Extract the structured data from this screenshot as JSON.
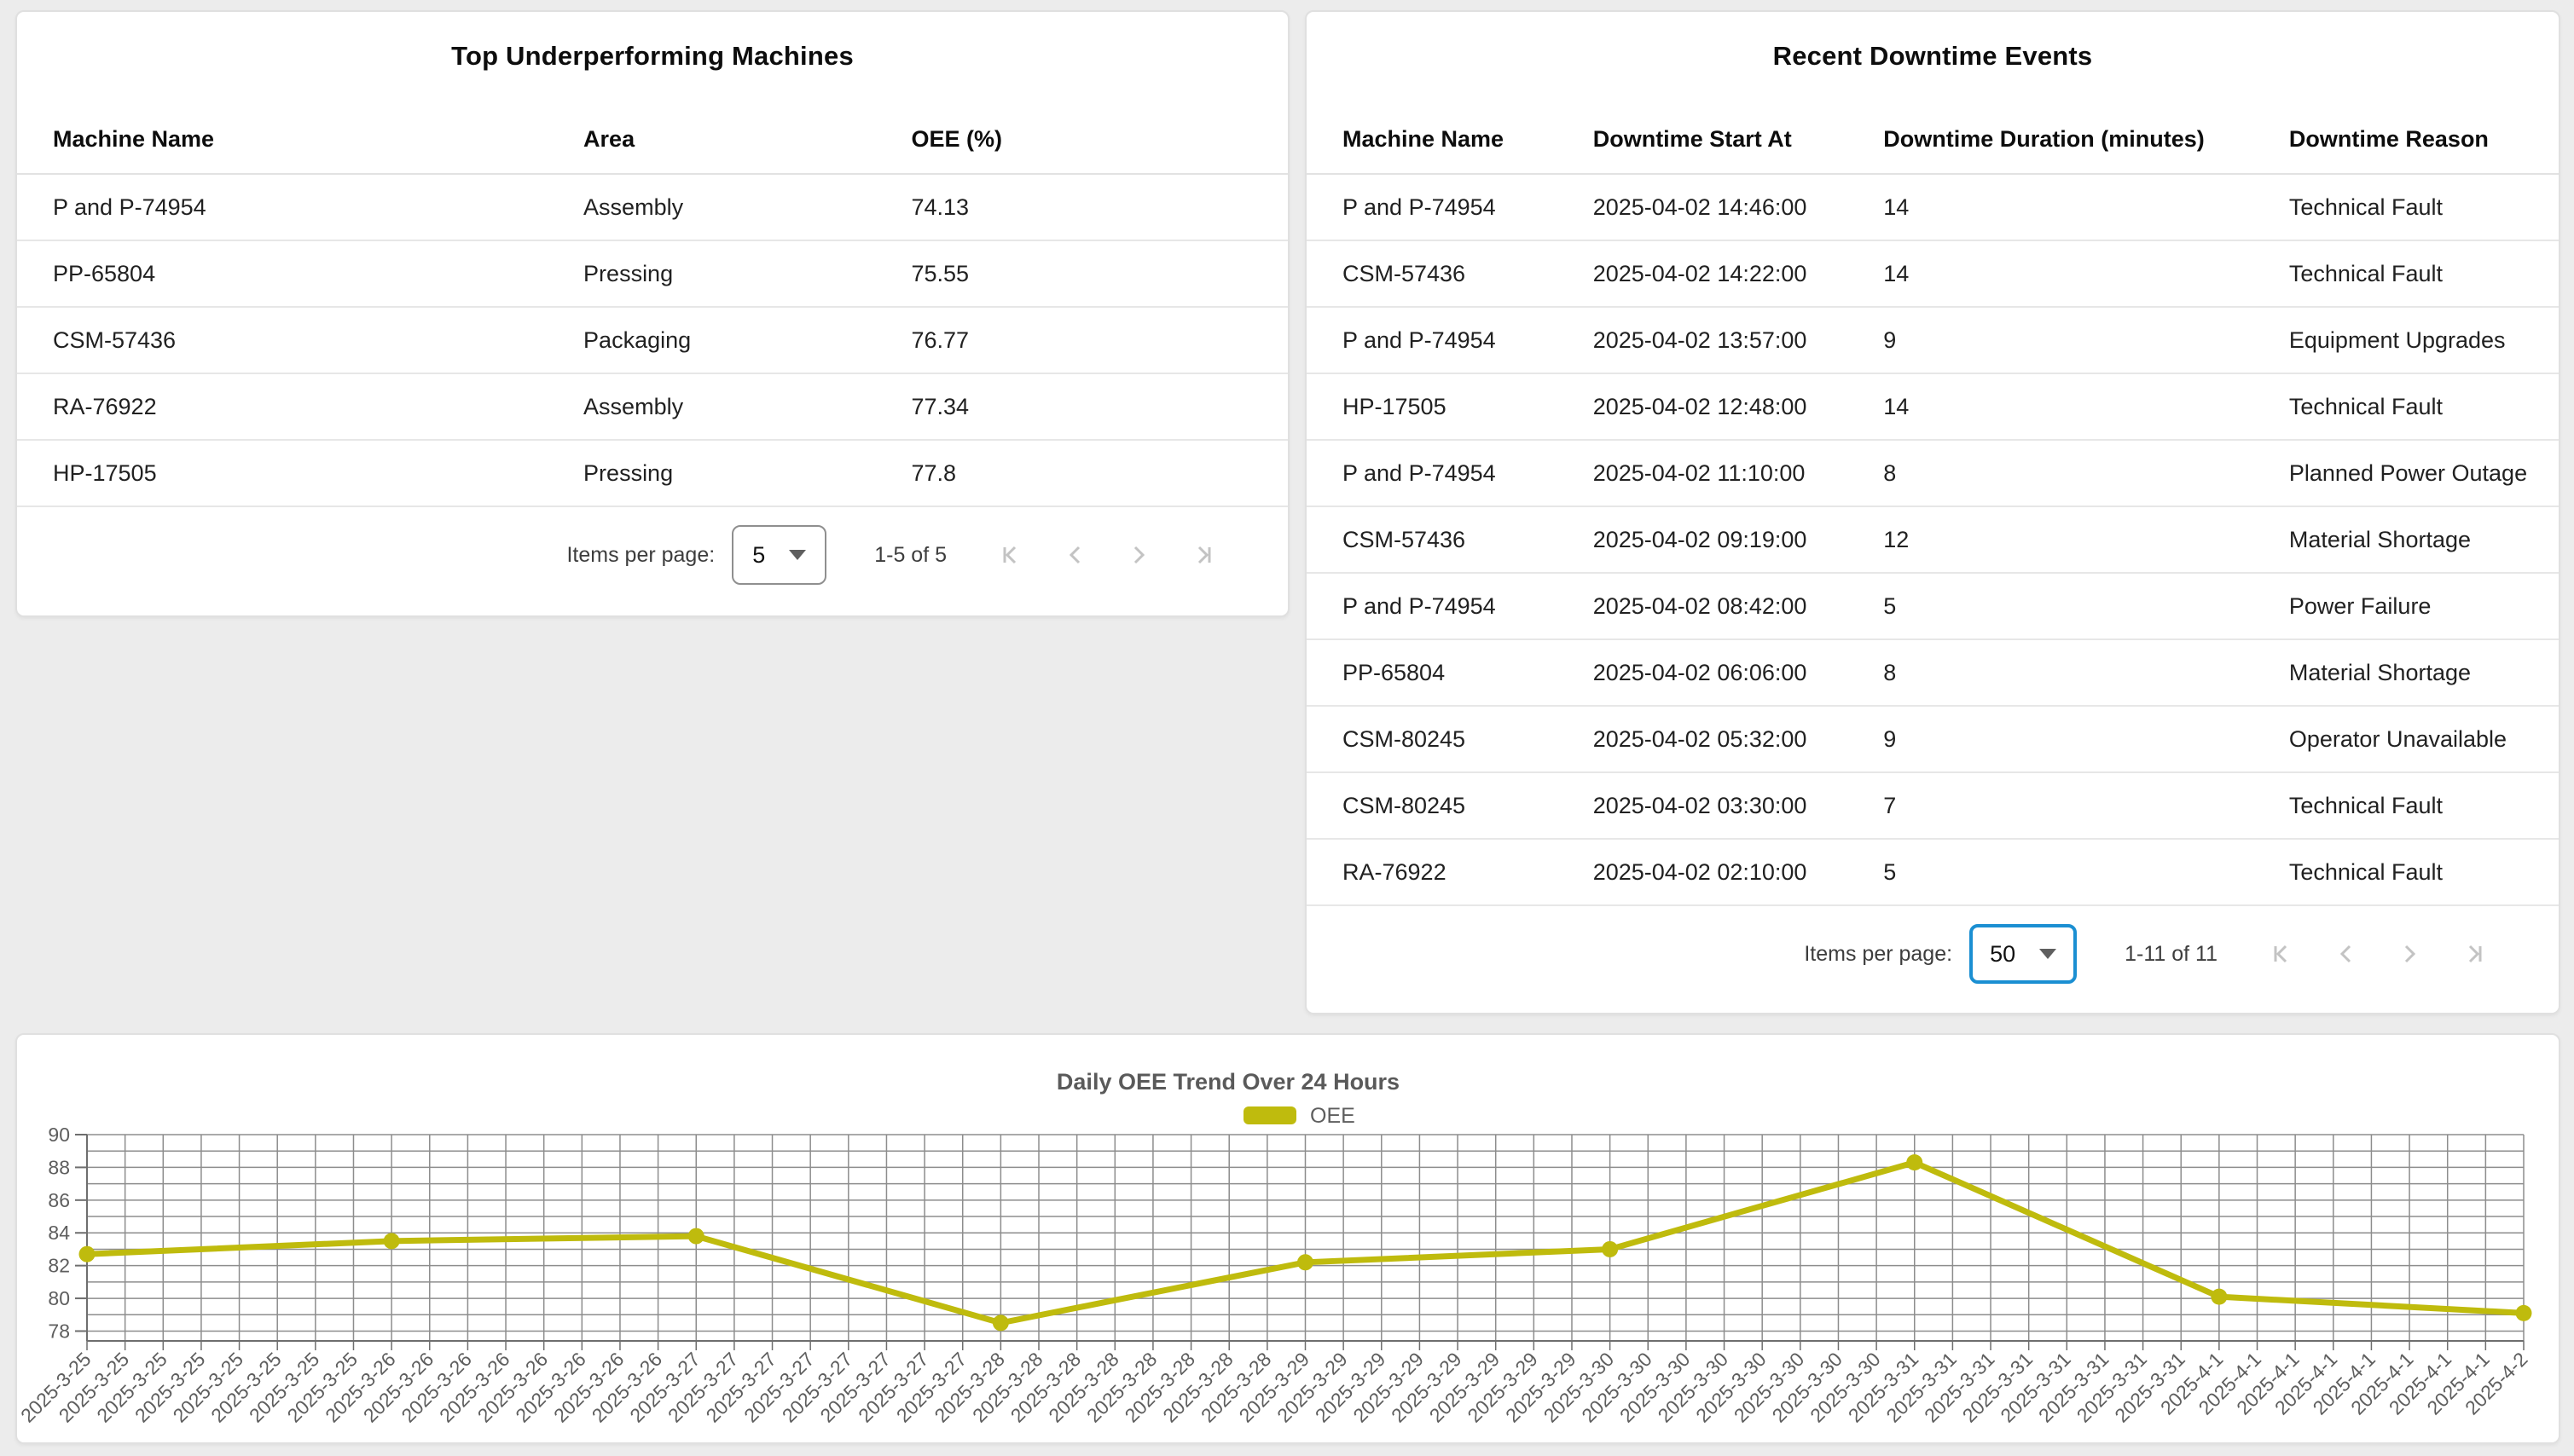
{
  "page": {
    "background": "#ececec"
  },
  "colors": {
    "series_olive": "#bfbb0d",
    "select_focus_blue": "#1b8fd2",
    "disabled_icon_gray": "#c3c3c3"
  },
  "underperforming_card": {
    "title": "Top Underperforming Machines",
    "columns": [
      "Machine Name",
      "Area",
      "OEE (%)"
    ],
    "rows": [
      [
        "P and P-74954",
        "Assembly",
        "74.13"
      ],
      [
        "PP-65804",
        "Pressing",
        "75.55"
      ],
      [
        "CSM-57436",
        "Packaging",
        "76.77"
      ],
      [
        "RA-76922",
        "Assembly",
        "77.34"
      ],
      [
        "HP-17505",
        "Pressing",
        "77.8"
      ]
    ],
    "pagination": {
      "label": "Items per page:",
      "page_size": "5",
      "range": "1-5 of 5"
    }
  },
  "downtime_card": {
    "title": "Recent Downtime Events",
    "columns": [
      "Machine Name",
      "Downtime Start At",
      "Downtime Duration (minutes)",
      "Downtime Reason"
    ],
    "rows": [
      [
        "P and P-74954",
        "2025-04-02 14:46:00",
        "14",
        "Technical Fault"
      ],
      [
        "CSM-57436",
        "2025-04-02 14:22:00",
        "14",
        "Technical Fault"
      ],
      [
        "P and P-74954",
        "2025-04-02 13:57:00",
        "9",
        "Equipment Upgrades"
      ],
      [
        "HP-17505",
        "2025-04-02 12:48:00",
        "14",
        "Technical Fault"
      ],
      [
        "P and P-74954",
        "2025-04-02 11:10:00",
        "8",
        "Planned Power Outage"
      ],
      [
        "CSM-57436",
        "2025-04-02 09:19:00",
        "12",
        "Material Shortage"
      ],
      [
        "P and P-74954",
        "2025-04-02 08:42:00",
        "5",
        "Power Failure"
      ],
      [
        "PP-65804",
        "2025-04-02 06:06:00",
        "8",
        "Material Shortage"
      ],
      [
        "CSM-80245",
        "2025-04-02 05:32:00",
        "9",
        "Operator Unavailable"
      ],
      [
        "CSM-80245",
        "2025-04-02 03:30:00",
        "7",
        "Technical Fault"
      ],
      [
        "RA-76922",
        "2025-04-02 02:10:00",
        "5",
        "Technical Fault"
      ]
    ],
    "pagination": {
      "label": "Items per page:",
      "page_size": "50",
      "range": "1-11 of 11"
    }
  },
  "chart_data": {
    "type": "line",
    "title": "Daily OEE Trend Over 24 Hours",
    "legend": [
      "OEE"
    ],
    "legend_position": "top",
    "x": [
      "2025-3-25",
      "2025-3-26",
      "2025-3-27",
      "2025-3-28",
      "2025-3-29",
      "2025-3-30",
      "2025-3-31",
      "2025-4-1",
      "2025-4-2"
    ],
    "values": [
      82.7,
      83.5,
      83.8,
      78.5,
      82.2,
      83.0,
      88.3,
      80.1,
      79.1
    ],
    "ticks_per_day": 8,
    "xlabel": "",
    "ylabel": "",
    "ylim": [
      77.4,
      90
    ],
    "yticks": [
      78,
      80,
      82,
      84,
      86,
      88,
      90
    ],
    "grid": true,
    "grid_step": 1,
    "series_color": "#bfbb0d"
  }
}
